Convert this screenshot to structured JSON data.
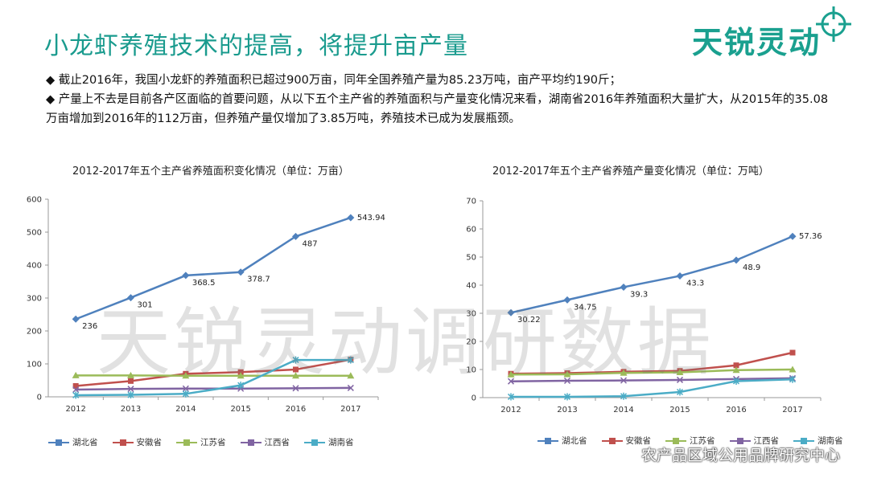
{
  "title": "小龙虾养殖技术的提高，将提升亩产量",
  "brand": {
    "name": "天锐灵动"
  },
  "bullets": [
    "◆ 截止2016年，我国小龙虾的养殖面积已超过900万亩，同年全国养殖产量为85.23万吨，亩产平均约190斤；",
    "◆ 产量上不去是目前各产区面临的首要问题，从以下五个主产省的养殖面积与产量变化情况来看，湖南省2016年养殖面积大量扩大，从2015年的35.08万亩增加到2016年的112万亩，但养殖产量仅增加了3.85万吨，养殖技术已成为发展瓶颈。"
  ],
  "watermark": "天锐灵动调研数据",
  "wechat": "农产品区域公用品牌研究中心",
  "colors": {
    "accent": "#1a9b8e"
  },
  "chart_data": [
    {
      "type": "line",
      "title": "2012-2017年五个主产省养殖面积变化情况（单位：万亩）",
      "categories": [
        "2012",
        "2013",
        "2014",
        "2015",
        "2016",
        "2017"
      ],
      "ylim": [
        0,
        600
      ],
      "yticks": [
        0,
        100,
        200,
        300,
        400,
        500,
        600
      ],
      "grid": false,
      "legend": "bottom",
      "series": [
        {
          "name": "湖北省",
          "color": "#4f81bd",
          "marker": "diamond",
          "values": [
            236,
            301,
            368.5,
            378.7,
            487,
            543.94
          ],
          "labels": [
            "236",
            "301",
            "368.5",
            "378.7",
            "487",
            "543.94"
          ]
        },
        {
          "name": "安徽省",
          "color": "#c0504d",
          "marker": "square",
          "values": [
            33,
            48,
            70,
            75,
            83,
            113
          ]
        },
        {
          "name": "江苏省",
          "color": "#9bbb59",
          "marker": "triangle",
          "values": [
            65,
            65,
            64,
            64,
            64,
            64
          ]
        },
        {
          "name": "江西省",
          "color": "#8064a2",
          "marker": "x",
          "values": [
            22,
            24,
            25,
            25,
            26,
            27
          ]
        },
        {
          "name": "湖南省",
          "color": "#4bacc6",
          "marker": "star",
          "values": [
            5,
            6,
            9,
            35.08,
            112,
            112
          ]
        }
      ]
    },
    {
      "type": "line",
      "title": "2012-2017年五个主产省养殖产量变化情况（单位：万吨）",
      "categories": [
        "2012",
        "2013",
        "2014",
        "2015",
        "2016",
        "2017"
      ],
      "ylim": [
        0,
        70
      ],
      "yticks": [
        0,
        10,
        20,
        30,
        40,
        50,
        60,
        70
      ],
      "grid": false,
      "legend": "bottom",
      "series": [
        {
          "name": "湖北省",
          "color": "#4f81bd",
          "marker": "diamond",
          "values": [
            30.22,
            34.75,
            39.3,
            43.3,
            48.9,
            57.36
          ],
          "labels": [
            "30.22",
            "34.75",
            "39.3",
            "43.3",
            "48.9",
            "57.36"
          ]
        },
        {
          "name": "安徽省",
          "color": "#c0504d",
          "marker": "square",
          "values": [
            8.5,
            8.7,
            9.2,
            9.5,
            11.5,
            16
          ]
        },
        {
          "name": "江苏省",
          "color": "#9bbb59",
          "marker": "triangle",
          "values": [
            8.2,
            8.3,
            8.8,
            9.0,
            9.8,
            10.0
          ]
        },
        {
          "name": "江西省",
          "color": "#8064a2",
          "marker": "x",
          "values": [
            5.8,
            6.0,
            6.1,
            6.3,
            6.6,
            6.9
          ]
        },
        {
          "name": "湖南省",
          "color": "#4bacc6",
          "marker": "star",
          "values": [
            0.3,
            0.3,
            0.5,
            2.0,
            5.85,
            6.5
          ]
        }
      ]
    }
  ]
}
